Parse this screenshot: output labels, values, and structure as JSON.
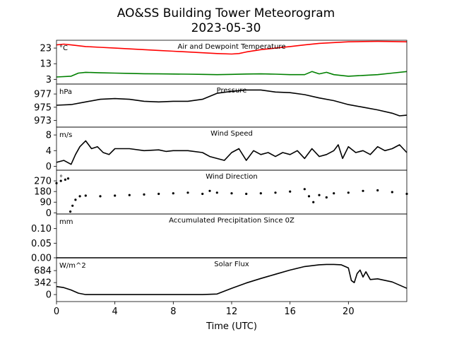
{
  "figure": {
    "title": "AO&SS Building Tower Meteorogram",
    "subtitle": "2023-05-30"
  },
  "chart_data": [
    {
      "type": "line",
      "title": "Air and Dewpoint Temperature",
      "unit": "°C",
      "ylim": [
        0,
        28
      ],
      "yticks": [
        3,
        13,
        23
      ],
      "xlim": [
        0,
        24
      ],
      "series": [
        {
          "color": "#ff0000",
          "x": [
            0,
            0.5,
            1,
            2,
            3,
            4,
            5,
            6,
            7,
            8,
            9,
            10,
            11,
            12,
            12.5,
            13,
            14,
            15,
            16,
            17,
            18,
            19,
            20,
            21,
            22,
            23,
            24
          ],
          "y": [
            25,
            25.5,
            25,
            24,
            23.5,
            23,
            22.5,
            22,
            21.5,
            21,
            20.5,
            20,
            19.5,
            19.2,
            19.5,
            20.5,
            22,
            23,
            24,
            25,
            26,
            26.5,
            27,
            27.2,
            27.3,
            27.2,
            27
          ]
        },
        {
          "color": "#008000",
          "x": [
            0,
            1,
            1.5,
            2,
            3,
            4,
            5,
            6,
            7,
            8,
            9,
            10,
            11,
            12,
            13,
            14,
            15,
            16,
            17,
            17.5,
            18,
            18.5,
            19,
            20,
            21,
            22,
            23,
            24
          ],
          "y": [
            4.5,
            5,
            7,
            7.5,
            7.2,
            7,
            6.8,
            6.6,
            6.5,
            6.4,
            6.3,
            6.2,
            6,
            6.2,
            6.4,
            6.5,
            6.3,
            6,
            6,
            8,
            6.5,
            7.5,
            6,
            5,
            5.5,
            6,
            7,
            8
          ]
        }
      ]
    },
    {
      "type": "line",
      "title": "Pressure",
      "unit": "hPa",
      "ylim": [
        972,
        978.5
      ],
      "yticks": [
        973,
        975,
        977
      ],
      "xlim": [
        0,
        24
      ],
      "series": [
        {
          "color": "#000000",
          "x": [
            0,
            1,
            2,
            3,
            4,
            5,
            6,
            7,
            8,
            9,
            10,
            11,
            12,
            13,
            14,
            15,
            16,
            17,
            18,
            19,
            20,
            21,
            22,
            23,
            23.5,
            24
          ],
          "y": [
            975.3,
            975.4,
            975.8,
            976.2,
            976.3,
            976.2,
            975.9,
            975.8,
            975.9,
            975.9,
            976.2,
            977.1,
            977.4,
            977.6,
            977.6,
            977.3,
            977.2,
            976.9,
            976.4,
            976,
            975.4,
            975,
            974.6,
            974.1,
            973.7,
            973.8
          ]
        }
      ]
    },
    {
      "type": "line",
      "title": "Wind Speed",
      "unit": "m/s",
      "ylim": [
        -1,
        10
      ],
      "yticks": [
        0,
        4,
        8
      ],
      "xlim": [
        0,
        24
      ],
      "series": [
        {
          "color": "#000000",
          "x": [
            0,
            0.5,
            1,
            1.3,
            1.6,
            2,
            2.4,
            2.8,
            3.2,
            3.6,
            4,
            5,
            6,
            7,
            7.5,
            8,
            9,
            10,
            10.5,
            11,
            11.5,
            12,
            12.5,
            13,
            13.5,
            14,
            14.5,
            15,
            15.5,
            16,
            16.5,
            17,
            17.5,
            18,
            18.5,
            19,
            19.3,
            19.6,
            20,
            20.5,
            21,
            21.5,
            22,
            22.5,
            23,
            23.5,
            24
          ],
          "y": [
            1,
            1.5,
            0.5,
            3,
            5,
            6.5,
            4.5,
            5,
            3.5,
            3,
            4.5,
            4.5,
            4,
            4.2,
            3.8,
            4,
            4,
            3.5,
            2.5,
            2,
            1.5,
            3.5,
            4.5,
            1.5,
            4,
            3,
            3.5,
            2.5,
            3.5,
            3,
            4,
            2,
            4.5,
            2.5,
            3,
            4,
            5.5,
            2,
            5,
            3.5,
            4,
            3,
            5,
            4,
            4.5,
            5.5,
            3.5
          ]
        }
      ]
    },
    {
      "type": "scatter",
      "title": "Wind Direction",
      "unit": "°",
      "ylim": [
        -10,
        360
      ],
      "yticks": [
        0,
        90,
        180,
        270
      ],
      "xlim": [
        0,
        24
      ],
      "series": [
        {
          "color": "#000000",
          "x": [
            0,
            0.3,
            0.6,
            0.8,
            0.95,
            1.1,
            1.3,
            1.6,
            2,
            3,
            4,
            5,
            6,
            7,
            8,
            9,
            10,
            10.5,
            11,
            12,
            13,
            14,
            15,
            16,
            17,
            17.3,
            17.6,
            18,
            18.5,
            19,
            20,
            21,
            22,
            23,
            24
          ],
          "y": [
            250,
            270,
            280,
            290,
            10,
            60,
            110,
            140,
            145,
            140,
            145,
            150,
            155,
            160,
            165,
            170,
            160,
            185,
            170,
            165,
            160,
            165,
            170,
            180,
            200,
            140,
            90,
            150,
            130,
            165,
            170,
            185,
            190,
            175,
            160
          ]
        }
      ]
    },
    {
      "type": "line",
      "title": "Accumulated Precipitation Since 0Z",
      "unit": "mm",
      "ylim": [
        0,
        0.15
      ],
      "yticks": [
        "0.00",
        "0.05",
        "0.10"
      ],
      "xlim": [
        0,
        24
      ],
      "series": [
        {
          "color": "#000000",
          "x": [
            0,
            24
          ],
          "y": [
            0,
            0
          ]
        }
      ]
    },
    {
      "type": "line",
      "title": "Solar Flux",
      "unit": "W/m^2",
      "ylim": [
        -200,
        1050
      ],
      "yticks": [
        0,
        342,
        684
      ],
      "xlim": [
        0,
        24
      ],
      "series": [
        {
          "color": "#000000",
          "x": [
            0,
            0.5,
            1,
            1.5,
            2,
            4,
            6,
            8,
            10,
            11,
            12,
            13,
            14,
            15,
            16,
            17,
            18,
            18.5,
            19,
            19.5,
            20,
            20.2,
            20.4,
            20.6,
            20.8,
            21,
            21.2,
            21.5,
            22,
            23,
            24
          ],
          "y": [
            230,
            200,
            130,
            40,
            0,
            0,
            0,
            0,
            0,
            15,
            180,
            330,
            460,
            580,
            700,
            800,
            850,
            860,
            860,
            850,
            760,
            400,
            340,
            600,
            700,
            500,
            650,
            430,
            450,
            360,
            180
          ]
        }
      ]
    }
  ],
  "xaxis": {
    "label": "Time (UTC)",
    "ticks": [
      0,
      4,
      8,
      12,
      16,
      20
    ],
    "range": [
      0,
      24
    ]
  }
}
